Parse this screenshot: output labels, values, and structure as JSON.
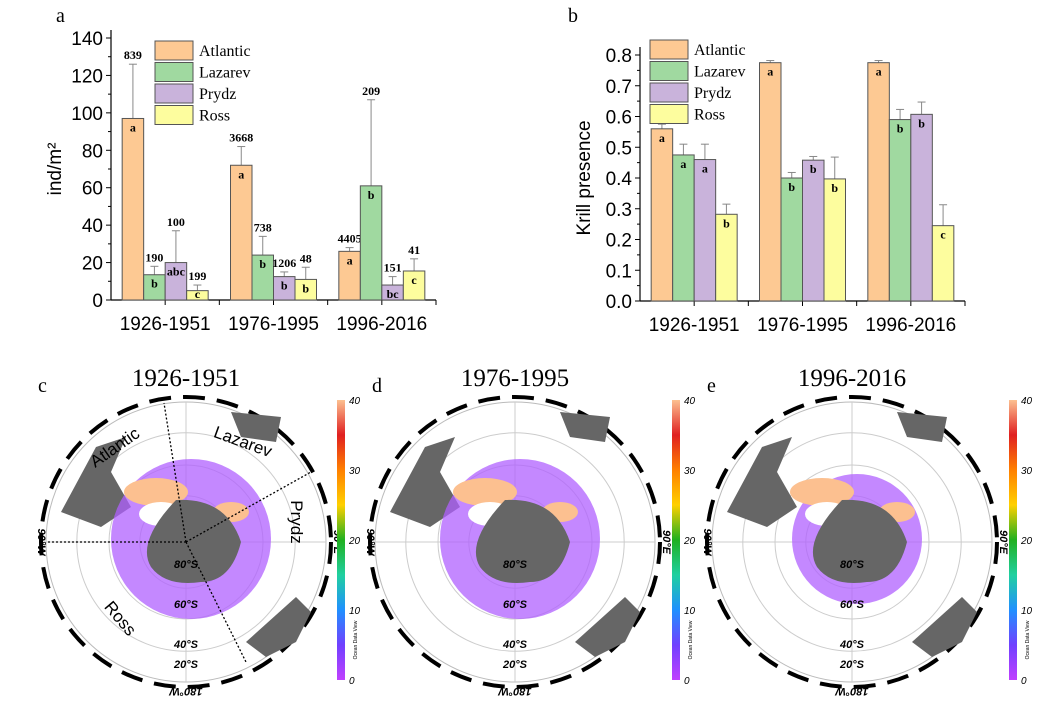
{
  "panels": {
    "a": "a",
    "b": "b",
    "c": "c",
    "d": "d",
    "e": "e"
  },
  "colors": {
    "Atlantic": "#fdc993",
    "Lazarev": "#a0d9a0",
    "Prydz": "#c9b3db",
    "Ross": "#fdfd9e"
  },
  "chart_data": [
    {
      "type": "bar",
      "panel": "a",
      "ylabel": "ind/m²",
      "ylim": [
        0,
        140
      ],
      "yticks": [
        "0",
        "20",
        "40",
        "60",
        "80",
        "100",
        "120",
        "140"
      ],
      "categories": [
        "1926-1951",
        "1976-1995",
        "1996-2016"
      ],
      "legend_placement": "top-left",
      "series": [
        {
          "name": "Atlantic",
          "values": [
            97,
            72,
            26
          ],
          "error_top": [
            126,
            82,
            28
          ],
          "n": [
            "839",
            "3668",
            "4405"
          ],
          "letters": [
            "a",
            "a",
            "a"
          ]
        },
        {
          "name": "Lazarev",
          "values": [
            13.5,
            24,
            61
          ],
          "error_top": [
            18,
            34,
            107
          ],
          "n": [
            "190",
            "738",
            "209"
          ],
          "letters": [
            "b",
            "b",
            "b"
          ]
        },
        {
          "name": "Prydz",
          "values": [
            20,
            12.5,
            8
          ],
          "error_top": [
            37,
            15,
            12.5
          ],
          "n": [
            "100",
            "1206",
            "151"
          ],
          "letters": [
            "abc",
            "b",
            "bc"
          ]
        },
        {
          "name": "Ross",
          "values": [
            5,
            11,
            15.5
          ],
          "error_top": [
            8,
            17.5,
            22
          ],
          "n": [
            "199",
            "48",
            "41"
          ],
          "letters": [
            "c",
            "b",
            "c"
          ]
        }
      ]
    },
    {
      "type": "bar",
      "panel": "b",
      "ylabel": "Krill presence",
      "ylim": [
        0,
        0.85
      ],
      "yticks": [
        "0.0",
        "0.1",
        "0.2",
        "0.3",
        "0.4",
        "0.5",
        "0.6",
        "0.7",
        "0.8"
      ],
      "categories": [
        "1926-1951",
        "1976-1995",
        "1996-2016"
      ],
      "legend_placement": "top-left",
      "series": [
        {
          "name": "Atlantic",
          "values": [
            0.56,
            0.775,
            0.775
          ],
          "error_top": [
            0.575,
            0.782,
            0.782
          ],
          "letters": [
            "a",
            "a",
            "a"
          ]
        },
        {
          "name": "Lazarev",
          "values": [
            0.475,
            0.4,
            0.59
          ],
          "error_top": [
            0.51,
            0.418,
            0.623
          ],
          "letters": [
            "a",
            "b",
            "b"
          ]
        },
        {
          "name": "Prydz",
          "values": [
            0.46,
            0.458,
            0.607
          ],
          "error_top": [
            0.51,
            0.47,
            0.647
          ],
          "letters": [
            "a",
            "b",
            "b"
          ]
        },
        {
          "name": "Ross",
          "values": [
            0.282,
            0.397,
            0.245
          ],
          "error_top": [
            0.315,
            0.468,
            0.313
          ],
          "letters": [
            "b",
            "b",
            "c"
          ]
        }
      ]
    }
  ],
  "maps": [
    {
      "panel": "c",
      "title": "1926-1951",
      "sectors": [
        "Atlantic",
        "Lazarev",
        "Prydz",
        "Ross"
      ]
    },
    {
      "panel": "d",
      "title": "1976-1995"
    },
    {
      "panel": "e",
      "title": "1996-2016"
    }
  ],
  "map_labels": {
    "west": "90°W",
    "east": "90°E",
    "bottom": "180°W",
    "lat80": "80°S",
    "lat60": "60°S",
    "lat40": "40°S",
    "lat20": "20°S"
  },
  "colorbar": {
    "ticks": [
      "40",
      "30",
      "20",
      "10",
      "0"
    ],
    "credit": "Ocean Data View",
    "colors": [
      "#c040ff",
      "#7040ff",
      "#2090ff",
      "#20d0a0",
      "#20b020",
      "#ffd000",
      "#ff8000",
      "#e02020",
      "#fcc090"
    ]
  }
}
